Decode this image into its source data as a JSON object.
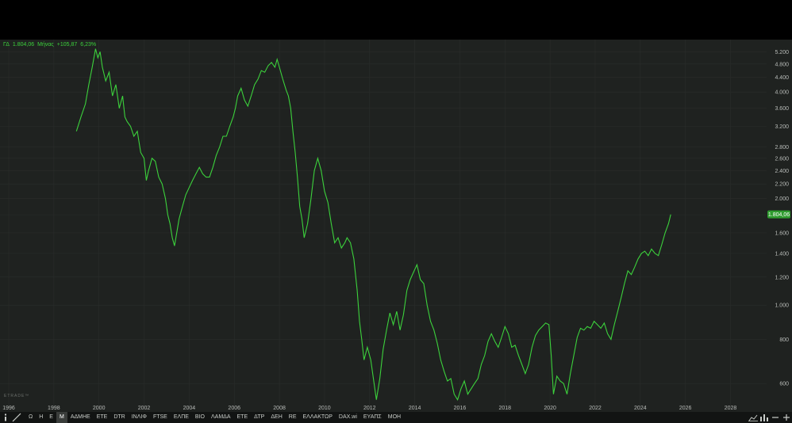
{
  "legend": {
    "symbol": "ΓΔ",
    "value": "1.804,06",
    "period": "Μήνας",
    "change": "+105,87",
    "change_pct": "6,23%"
  },
  "watermark": "ETRADE™",
  "colors": {
    "line": "#3cd13c",
    "background": "#1f2220",
    "grid": "#2a2d2b",
    "badge": "#2e9b2e"
  },
  "toolbar": {
    "info_icon": "info-icon",
    "draw_icon": "draw-line-icon",
    "intervals": [
      "Ω",
      "Η",
      "Ε",
      "Μ"
    ],
    "active_interval": "Μ",
    "symbols": [
      "ΑΔΜΗΕ",
      "ΕΤΕ",
      "DTR",
      "ΙΝΛΙΦ",
      "FTSE",
      "ΕΛΠΕ",
      "ΒΙΟ",
      "ΛΑΜΔΑ",
      "ΕΤΕ",
      "ΔΤΡ",
      "ΔΕΗ",
      "RE",
      "ΕΛΛΑΚΤΩΡ",
      "DAX.wi",
      "ΕΥΑΠΣ",
      "ΜΟΗ"
    ],
    "right_icons": [
      "chart-type-icon",
      "bar-chart-icon",
      "zoom-out-icon",
      "zoom-in-icon"
    ]
  },
  "chart_data": {
    "type": "line",
    "scale": "log",
    "ylim": [
      520,
      5400
    ],
    "xlim": [
      1996,
      2029.6
    ],
    "y_ticks": [
      600,
      800,
      1000,
      1200,
      1400,
      1600,
      1800,
      2000,
      2200,
      2400,
      2600,
      2800,
      3200,
      3600,
      4000,
      4400,
      4800,
      5200
    ],
    "y_tick_labels": [
      "600",
      "800",
      "1.000",
      "1.200",
      "1.400",
      "1.600",
      "1.800",
      "2.000",
      "2.200",
      "2.400",
      "2.600",
      "2.800",
      "3.200",
      "3.600",
      "4.000",
      "4.400",
      "4.800",
      "5.200"
    ],
    "x_ticks": [
      1996,
      1998,
      2000,
      2002,
      2004,
      2006,
      2008,
      2010,
      2012,
      2014,
      2016,
      2018,
      2020,
      2022,
      2024,
      2026,
      2028
    ],
    "x_tick_labels": [
      "1996",
      "1998",
      "2000",
      "2002",
      "2004",
      "2006",
      "2008",
      "2010",
      "2012",
      "2014",
      "2016",
      "2018",
      "2020",
      "2022",
      "2024",
      "2026",
      "2028"
    ],
    "last_price_label": "1.804,06",
    "last_value": 1804.06,
    "grid": true,
    "points": [
      [
        1999.0,
        3100
      ],
      [
        1999.2,
        3400
      ],
      [
        1999.4,
        3700
      ],
      [
        1999.55,
        4200
      ],
      [
        1999.7,
        4700
      ],
      [
        1999.85,
        5300
      ],
      [
        1999.95,
        5000
      ],
      [
        2000.05,
        5200
      ],
      [
        2000.15,
        4700
      ],
      [
        2000.3,
        4300
      ],
      [
        2000.45,
        4550
      ],
      [
        2000.6,
        3900
      ],
      [
        2000.75,
        4200
      ],
      [
        2000.9,
        3600
      ],
      [
        2001.05,
        3900
      ],
      [
        2001.15,
        3400
      ],
      [
        2001.25,
        3300
      ],
      [
        2001.4,
        3200
      ],
      [
        2001.55,
        3000
      ],
      [
        2001.7,
        3100
      ],
      [
        2001.85,
        2700
      ],
      [
        2002.0,
        2600
      ],
      [
        2002.1,
        2250
      ],
      [
        2002.2,
        2400
      ],
      [
        2002.35,
        2600
      ],
      [
        2002.5,
        2550
      ],
      [
        2002.65,
        2300
      ],
      [
        2002.8,
        2200
      ],
      [
        2002.95,
        2000
      ],
      [
        2003.05,
        1800
      ],
      [
        2003.15,
        1700
      ],
      [
        2003.25,
        1550
      ],
      [
        2003.35,
        1470
      ],
      [
        2003.45,
        1600
      ],
      [
        2003.55,
        1750
      ],
      [
        2003.7,
        1900
      ],
      [
        2003.85,
        2050
      ],
      [
        2004.0,
        2150
      ],
      [
        2004.15,
        2250
      ],
      [
        2004.3,
        2350
      ],
      [
        2004.45,
        2450
      ],
      [
        2004.6,
        2350
      ],
      [
        2004.75,
        2300
      ],
      [
        2004.9,
        2300
      ],
      [
        2005.05,
        2450
      ],
      [
        2005.2,
        2650
      ],
      [
        2005.35,
        2800
      ],
      [
        2005.5,
        3000
      ],
      [
        2005.65,
        3000
      ],
      [
        2005.8,
        3200
      ],
      [
        2005.95,
        3400
      ],
      [
        2006.05,
        3600
      ],
      [
        2006.15,
        3900
      ],
      [
        2006.3,
        4100
      ],
      [
        2006.45,
        3800
      ],
      [
        2006.6,
        3650
      ],
      [
        2006.75,
        3900
      ],
      [
        2006.9,
        4200
      ],
      [
        2007.05,
        4350
      ],
      [
        2007.2,
        4600
      ],
      [
        2007.35,
        4550
      ],
      [
        2007.5,
        4750
      ],
      [
        2007.65,
        4850
      ],
      [
        2007.8,
        4700
      ],
      [
        2007.9,
        4950
      ],
      [
        2008.0,
        4700
      ],
      [
        2008.15,
        4350
      ],
      [
        2008.3,
        4050
      ],
      [
        2008.4,
        3900
      ],
      [
        2008.5,
        3600
      ],
      [
        2008.6,
        3100
      ],
      [
        2008.7,
        2700
      ],
      [
        2008.8,
        2300
      ],
      [
        2008.9,
        1900
      ],
      [
        2009.0,
        1750
      ],
      [
        2009.1,
        1550
      ],
      [
        2009.25,
        1700
      ],
      [
        2009.4,
        2000
      ],
      [
        2009.55,
        2400
      ],
      [
        2009.7,
        2600
      ],
      [
        2009.85,
        2400
      ],
      [
        2010.0,
        2100
      ],
      [
        2010.15,
        1950
      ],
      [
        2010.3,
        1700
      ],
      [
        2010.45,
        1500
      ],
      [
        2010.6,
        1550
      ],
      [
        2010.75,
        1450
      ],
      [
        2010.9,
        1500
      ],
      [
        2011.0,
        1550
      ],
      [
        2011.15,
        1500
      ],
      [
        2011.3,
        1350
      ],
      [
        2011.45,
        1100
      ],
      [
        2011.55,
        900
      ],
      [
        2011.65,
        800
      ],
      [
        2011.75,
        700
      ],
      [
        2011.9,
        760
      ],
      [
        2012.05,
        700
      ],
      [
        2012.2,
        600
      ],
      [
        2012.3,
        540
      ],
      [
        2012.45,
        620
      ],
      [
        2012.6,
        750
      ],
      [
        2012.75,
        850
      ],
      [
        2012.9,
        950
      ],
      [
        2013.05,
        880
      ],
      [
        2013.2,
        960
      ],
      [
        2013.35,
        850
      ],
      [
        2013.5,
        940
      ],
      [
        2013.65,
        1100
      ],
      [
        2013.8,
        1180
      ],
      [
        2013.95,
        1240
      ],
      [
        2014.1,
        1300
      ],
      [
        2014.25,
        1180
      ],
      [
        2014.4,
        1150
      ],
      [
        2014.55,
        1000
      ],
      [
        2014.7,
        900
      ],
      [
        2014.85,
        850
      ],
      [
        2015.0,
        780
      ],
      [
        2015.15,
        700
      ],
      [
        2015.3,
        650
      ],
      [
        2015.45,
        610
      ],
      [
        2015.6,
        620
      ],
      [
        2015.75,
        560
      ],
      [
        2015.9,
        540
      ],
      [
        2016.05,
        580
      ],
      [
        2016.2,
        610
      ],
      [
        2016.35,
        560
      ],
      [
        2016.5,
        580
      ],
      [
        2016.65,
        600
      ],
      [
        2016.8,
        620
      ],
      [
        2016.95,
        680
      ],
      [
        2017.1,
        720
      ],
      [
        2017.25,
        790
      ],
      [
        2017.4,
        830
      ],
      [
        2017.55,
        790
      ],
      [
        2017.7,
        760
      ],
      [
        2017.85,
        810
      ],
      [
        2018.0,
        870
      ],
      [
        2018.15,
        830
      ],
      [
        2018.3,
        760
      ],
      [
        2018.45,
        770
      ],
      [
        2018.6,
        720
      ],
      [
        2018.75,
        680
      ],
      [
        2018.9,
        640
      ],
      [
        2019.05,
        680
      ],
      [
        2019.2,
        760
      ],
      [
        2019.35,
        820
      ],
      [
        2019.5,
        850
      ],
      [
        2019.65,
        870
      ],
      [
        2019.8,
        890
      ],
      [
        2019.95,
        880
      ],
      [
        2020.05,
        720
      ],
      [
        2020.15,
        560
      ],
      [
        2020.3,
        630
      ],
      [
        2020.45,
        610
      ],
      [
        2020.6,
        600
      ],
      [
        2020.75,
        560
      ],
      [
        2020.9,
        640
      ],
      [
        2021.05,
        720
      ],
      [
        2021.2,
        810
      ],
      [
        2021.35,
        860
      ],
      [
        2021.5,
        850
      ],
      [
        2021.65,
        870
      ],
      [
        2021.8,
        860
      ],
      [
        2021.95,
        900
      ],
      [
        2022.1,
        880
      ],
      [
        2022.25,
        860
      ],
      [
        2022.4,
        890
      ],
      [
        2022.55,
        830
      ],
      [
        2022.7,
        800
      ],
      [
        2022.85,
        880
      ],
      [
        2023.0,
        960
      ],
      [
        2023.15,
        1050
      ],
      [
        2023.3,
        1150
      ],
      [
        2023.45,
        1250
      ],
      [
        2023.6,
        1220
      ],
      [
        2023.75,
        1280
      ],
      [
        2023.9,
        1350
      ],
      [
        2024.05,
        1400
      ],
      [
        2024.2,
        1420
      ],
      [
        2024.35,
        1380
      ],
      [
        2024.5,
        1440
      ],
      [
        2024.65,
        1400
      ],
      [
        2024.8,
        1380
      ],
      [
        2024.95,
        1480
      ],
      [
        2025.1,
        1600
      ],
      [
        2025.25,
        1700
      ],
      [
        2025.35,
        1804.06
      ]
    ]
  }
}
